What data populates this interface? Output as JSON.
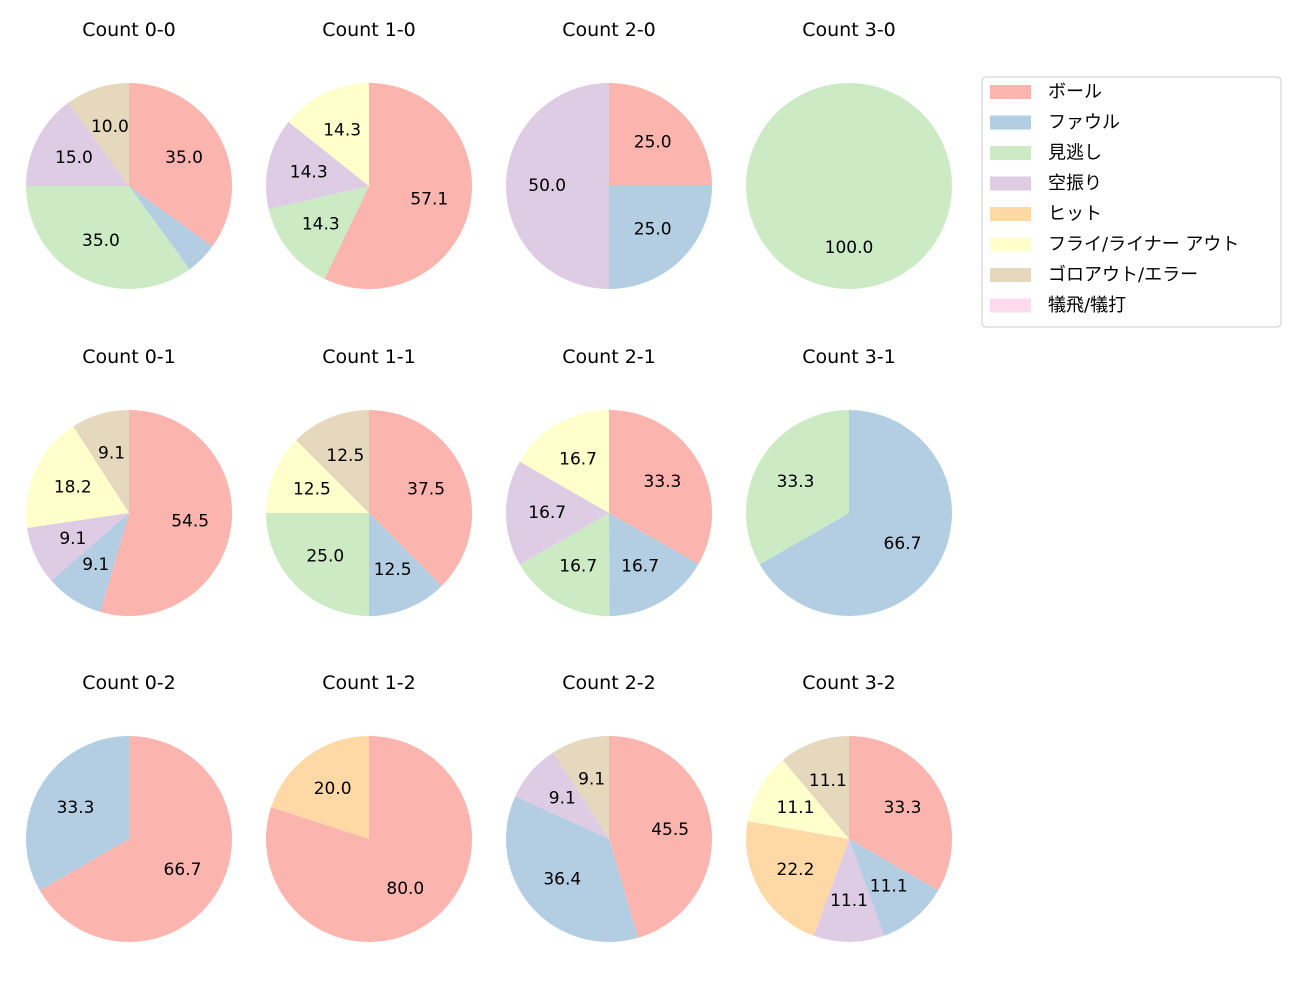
{
  "chart_data": {
    "type": "pie",
    "colors": [
      "#fbb4ae",
      "#b3cde3",
      "#ccebc5",
      "#decbe4",
      "#fed9a6",
      "#ffffcc",
      "#e5d8bd",
      "#fddaec"
    ],
    "legend": {
      "placement": "top-right",
      "entries": [
        "ボール",
        "ファウル",
        "見逃し",
        "空振り",
        "ヒット",
        "フライ/ライナー アウト",
        "ゴロアウト/エラー",
        "犠飛/犠打"
      ]
    },
    "start_angle": 90,
    "direction": "clockwise",
    "pies": [
      {
        "title": "Count 0-0",
        "slices": [
          {
            "category": "ボール",
            "value": 35.0,
            "label": "35.0"
          },
          {
            "category": "ファウル",
            "value": 5.0,
            "label": null
          },
          {
            "category": "見逃し",
            "value": 35.0,
            "label": "35.0"
          },
          {
            "category": "空振り",
            "value": 15.0,
            "label": "15.0"
          },
          {
            "category": "ゴロアウト/エラー",
            "value": 10.0,
            "label": "10.0"
          }
        ]
      },
      {
        "title": "Count 1-0",
        "slices": [
          {
            "category": "ボール",
            "value": 57.1,
            "label": "57.1"
          },
          {
            "category": "見逃し",
            "value": 14.3,
            "label": "14.3"
          },
          {
            "category": "空振り",
            "value": 14.3,
            "label": "14.3"
          },
          {
            "category": "フライ/ライナー アウト",
            "value": 14.3,
            "label": "14.3"
          }
        ]
      },
      {
        "title": "Count 2-0",
        "slices": [
          {
            "category": "ボール",
            "value": 25.0,
            "label": "25.0"
          },
          {
            "category": "ファウル",
            "value": 25.0,
            "label": "25.0"
          },
          {
            "category": "空振り",
            "value": 50.0,
            "label": "50.0"
          }
        ]
      },
      {
        "title": "Count 3-0",
        "slices": [
          {
            "category": "見逃し",
            "value": 100.0,
            "label": "100.0"
          }
        ]
      },
      {
        "title": "Count 0-1",
        "slices": [
          {
            "category": "ボール",
            "value": 54.5,
            "label": "54.5"
          },
          {
            "category": "ファウル",
            "value": 9.1,
            "label": "9.1"
          },
          {
            "category": "空振り",
            "value": 9.1,
            "label": "9.1"
          },
          {
            "category": "フライ/ライナー アウト",
            "value": 18.2,
            "label": "18.2"
          },
          {
            "category": "ゴロアウト/エラー",
            "value": 9.1,
            "label": "9.1"
          }
        ]
      },
      {
        "title": "Count 1-1",
        "slices": [
          {
            "category": "ボール",
            "value": 37.5,
            "label": "37.5"
          },
          {
            "category": "ファウル",
            "value": 12.5,
            "label": "12.5"
          },
          {
            "category": "見逃し",
            "value": 25.0,
            "label": "25.0"
          },
          {
            "category": "フライ/ライナー アウト",
            "value": 12.5,
            "label": "12.5"
          },
          {
            "category": "ゴロアウト/エラー",
            "value": 12.5,
            "label": "12.5"
          }
        ]
      },
      {
        "title": "Count 2-1",
        "slices": [
          {
            "category": "ボール",
            "value": 33.3,
            "label": "33.3"
          },
          {
            "category": "ファウル",
            "value": 16.7,
            "label": "16.7"
          },
          {
            "category": "見逃し",
            "value": 16.7,
            "label": "16.7"
          },
          {
            "category": "空振り",
            "value": 16.7,
            "label": "16.7"
          },
          {
            "category": "フライ/ライナー アウト",
            "value": 16.7,
            "label": "16.7"
          }
        ]
      },
      {
        "title": "Count 3-1",
        "slices": [
          {
            "category": "ファウル",
            "value": 66.7,
            "label": "66.7"
          },
          {
            "category": "見逃し",
            "value": 33.3,
            "label": "33.3"
          }
        ]
      },
      {
        "title": "Count 0-2",
        "slices": [
          {
            "category": "ボール",
            "value": 66.7,
            "label": "66.7"
          },
          {
            "category": "ファウル",
            "value": 33.3,
            "label": "33.3"
          }
        ]
      },
      {
        "title": "Count 1-2",
        "slices": [
          {
            "category": "ボール",
            "value": 80.0,
            "label": "80.0"
          },
          {
            "category": "ヒット",
            "value": 20.0,
            "label": "20.0"
          }
        ]
      },
      {
        "title": "Count 2-2",
        "slices": [
          {
            "category": "ボール",
            "value": 45.5,
            "label": "45.5"
          },
          {
            "category": "ファウル",
            "value": 36.4,
            "label": "36.4"
          },
          {
            "category": "空振り",
            "value": 9.1,
            "label": "9.1"
          },
          {
            "category": "ゴロアウト/エラー",
            "value": 9.1,
            "label": "9.1"
          }
        ]
      },
      {
        "title": "Count 3-2",
        "slices": [
          {
            "category": "ボール",
            "value": 33.3,
            "label": "33.3"
          },
          {
            "category": "ファウル",
            "value": 11.1,
            "label": "11.1"
          },
          {
            "category": "空振り",
            "value": 11.1,
            "label": "11.1"
          },
          {
            "category": "ヒット",
            "value": 22.2,
            "label": "22.2"
          },
          {
            "category": "フライ/ライナー アウト",
            "value": 11.1,
            "label": "11.1"
          },
          {
            "category": "ゴロアウト/エラー",
            "value": 11.1,
            "label": "11.1"
          }
        ]
      }
    ]
  }
}
